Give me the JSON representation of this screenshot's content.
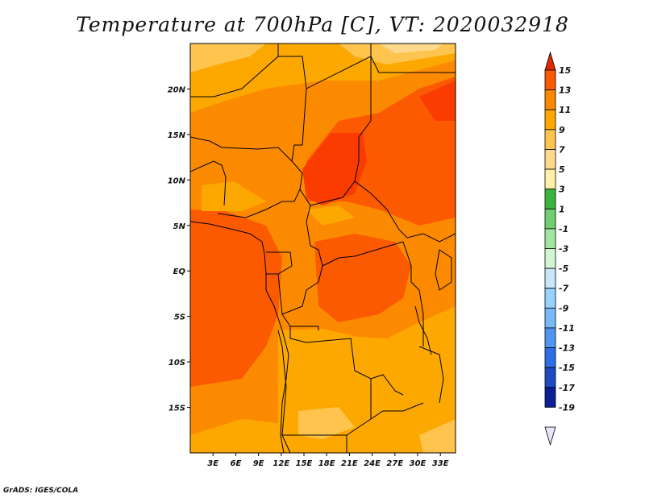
{
  "title": "Temperature at 700hPa [C], VT: 2020032918",
  "credit": "GrADS: IGES/COLA",
  "map": {
    "lon_range": [
      0,
      35
    ],
    "lat_range": [
      -20,
      25
    ],
    "lon_ticks": [
      "3E",
      "6E",
      "9E",
      "12E",
      "15E",
      "18E",
      "21E",
      "24E",
      "27E",
      "30E",
      "33E"
    ],
    "lon_tick_values": [
      3,
      6,
      9,
      12,
      15,
      18,
      21,
      24,
      27,
      30,
      33
    ],
    "lat_ticks": [
      "20N",
      "15N",
      "10N",
      "5N",
      "EQ",
      "5S",
      "10S",
      "15S"
    ],
    "lat_tick_values": [
      20,
      15,
      10,
      5,
      0,
      -5,
      -10,
      -15
    ]
  },
  "colorbar": {
    "labels": [
      "15",
      "13",
      "11",
      "9",
      "7",
      "5",
      "3",
      "1",
      "-1",
      "-3",
      "-5",
      "-7",
      "-9",
      "-11",
      "-13",
      "-15",
      "-17",
      "-19"
    ],
    "colors": [
      "#fa3c00",
      "#fb5a00",
      "#fc8700",
      "#fda800",
      "#fec44e",
      "#fed98c",
      "#fff0a8",
      "#3cb43c",
      "#70d070",
      "#a0e6a0",
      "#d2f5d2",
      "#c8e6fa",
      "#96d2fa",
      "#78b9fa",
      "#5096f0",
      "#2d6ee6",
      "#1e4bbe",
      "#0a1e96",
      "#0a0a64"
    ],
    "upper_arrow_color": "#e02a00",
    "lower_arrow_color": "#e6e6fa"
  }
}
